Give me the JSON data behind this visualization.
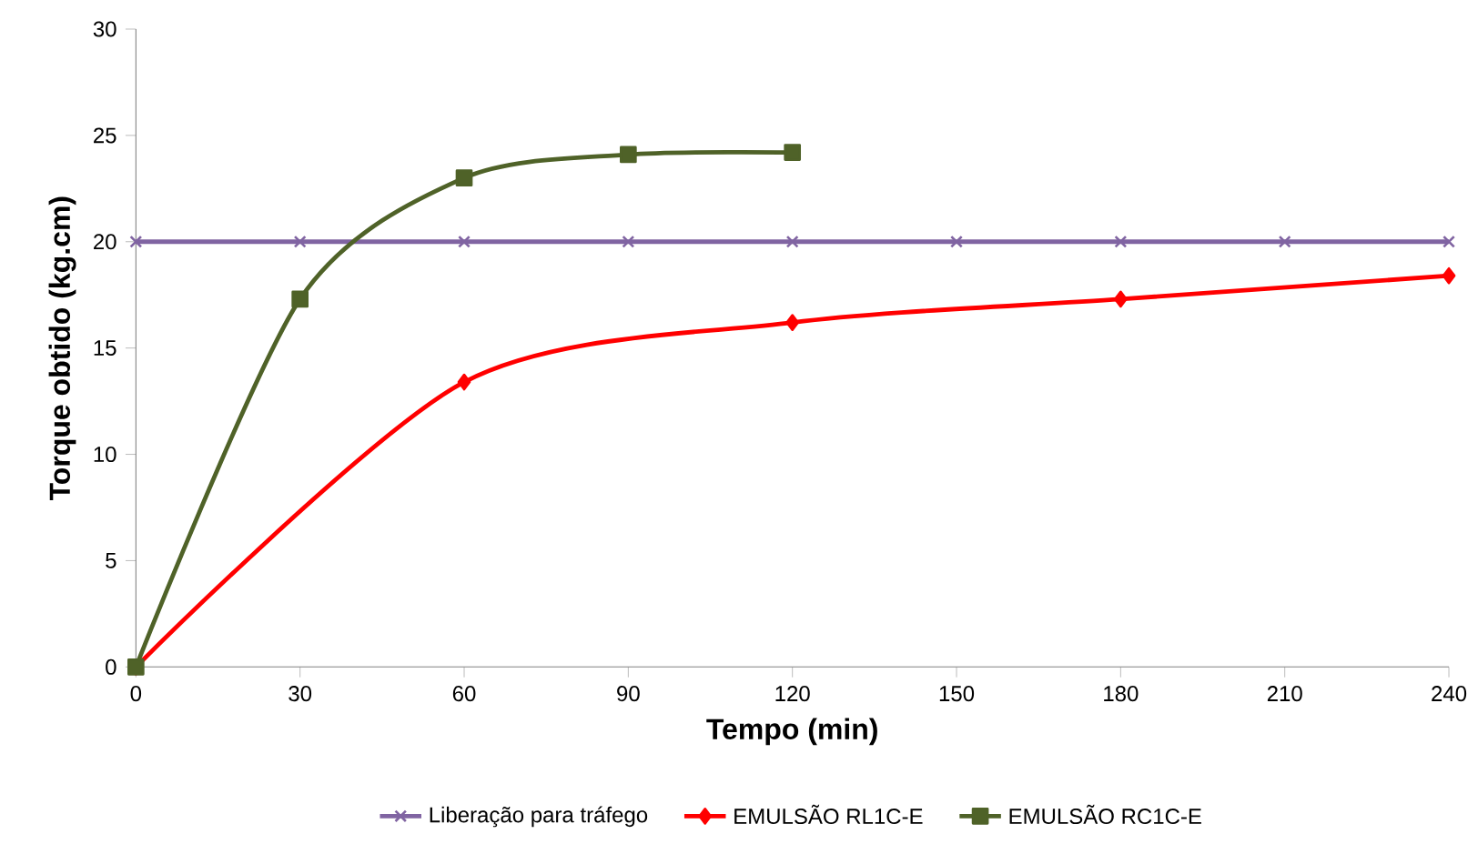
{
  "chart_data": {
    "type": "line",
    "xlabel": "Tempo (min)",
    "ylabel": "Torque obtido (kg.cm)",
    "xlim": [
      0,
      240
    ],
    "ylim": [
      0,
      30
    ],
    "xticks": [
      0,
      30,
      60,
      90,
      120,
      150,
      180,
      210,
      240
    ],
    "yticks": [
      0,
      5,
      10,
      15,
      20,
      25,
      30
    ],
    "grid": false,
    "legend": "bottom",
    "line_style": "solid",
    "series": [
      {
        "name": "Liberação para tráfego",
        "color": "#8064a2",
        "marker": "cross",
        "x": [
          0,
          30,
          60,
          90,
          120,
          150,
          180,
          210,
          240
        ],
        "values": [
          20,
          20,
          20,
          20,
          20,
          20,
          20,
          20,
          20
        ]
      },
      {
        "name": "EMULSÃO RL1C-E",
        "color": "#ff0000",
        "marker": "diamond",
        "x": [
          0,
          60,
          120,
          180,
          240
        ],
        "values": [
          0,
          13.4,
          16.2,
          17.3,
          18.4
        ]
      },
      {
        "name": "EMULSÃO RC1C-E",
        "color": "#4f6228",
        "marker": "square",
        "x": [
          0,
          30,
          60,
          90,
          120
        ],
        "values": [
          0,
          17.3,
          23.0,
          24.1,
          24.2
        ]
      }
    ]
  }
}
